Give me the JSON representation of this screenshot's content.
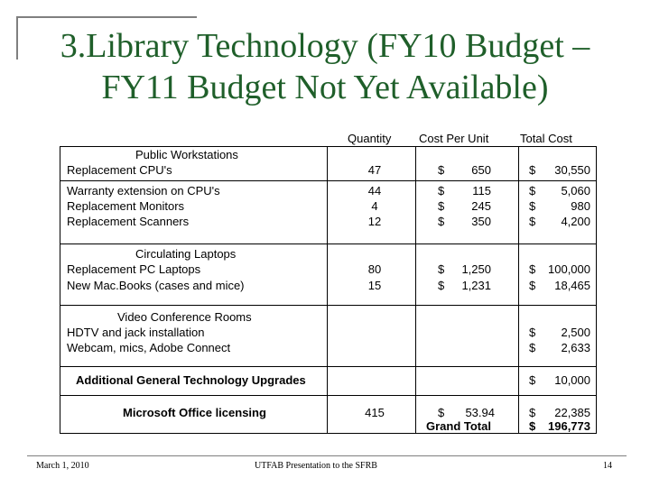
{
  "slide": {
    "title_line1": "3.Library Technology (FY10 Budget –",
    "title_line2": "FY11 Budget Not Yet Available)"
  },
  "table": {
    "headers": {
      "quantity": "Quantity",
      "cost_per_unit": "Cost  Per  Unit",
      "total_cost": "Total  Cost"
    },
    "sections": {
      "workstations": "Public  Workstations",
      "laptops": "Circulating Laptops",
      "video": "Video Conference Rooms",
      "upgrades": "Additional General Technology Upgrades",
      "office": "Microsoft Office licensing"
    },
    "rows": {
      "cpus": {
        "label": "Replacement CPU's",
        "qty": "47",
        "cur1": "$",
        "unit": "650",
        "cur2": "$",
        "total": "30,550"
      },
      "warranty": {
        "label": "Warranty extension on CPU's",
        "qty": "44",
        "cur1": "$",
        "unit": "115",
        "cur2": "$",
        "total": "5,060"
      },
      "monitors": {
        "label": "Replacement Monitors",
        "qty": "4",
        "cur1": "$",
        "unit": "245",
        "cur2": "$",
        "total": "980"
      },
      "scanners": {
        "label": "Replacement Scanners",
        "qty": "12",
        "cur1": "$",
        "unit": "350",
        "cur2": "$",
        "total": "4,200"
      },
      "pc_laptops": {
        "label": "Replacement PC Laptops",
        "qty": "80",
        "cur1": "$",
        "unit": "1,250",
        "cur2": "$",
        "total": "100,000"
      },
      "macbooks": {
        "label": "New Mac.Books (cases and mice)",
        "qty": "15",
        "cur1": "$",
        "unit": "1,231",
        "cur2": "$",
        "total": "18,465"
      },
      "hdtv": {
        "label": "HDTV and jack installation",
        "cur2": "$",
        "total": "2,500"
      },
      "webcam": {
        "label": "Webcam, mics, Adobe Connect",
        "cur2": "$",
        "total": "2,633"
      },
      "upgrades": {
        "cur2": "$",
        "total": "10,000"
      },
      "office": {
        "qty": "415",
        "cur1": "$",
        "unit": "53.94",
        "cur2": "$",
        "total": "22,385"
      },
      "grand_total": {
        "label": "Grand Total",
        "cur2": "$",
        "total": "196,773"
      }
    }
  },
  "footer": {
    "date": "March 1, 2010",
    "presentation": "UTFAB Presentation to the SFRB",
    "page": "14"
  }
}
